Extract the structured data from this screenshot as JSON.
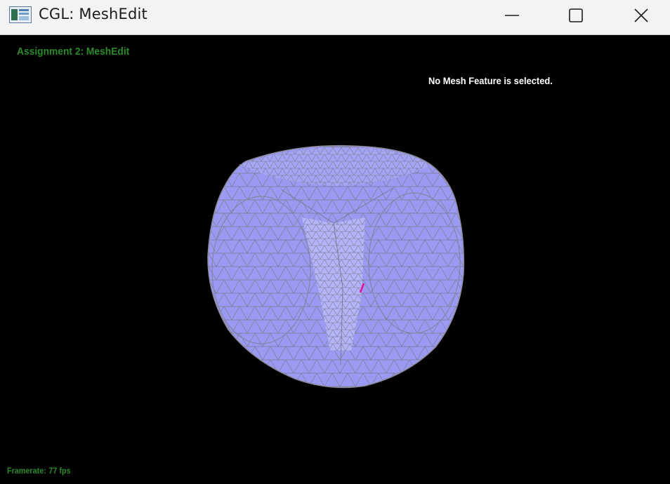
{
  "window": {
    "title": "CGL: MeshEdit",
    "controls": [
      "minimize-icon",
      "maximize-icon",
      "close-icon"
    ]
  },
  "overlay": {
    "heading": "Assignment 2: MeshEdit",
    "selection_status": "No Mesh Feature is selected.",
    "framerate_label": "Framerate:",
    "framerate_value": "77 fps"
  },
  "colors": {
    "background": "#000000",
    "titlebar": "#f3f3f3",
    "heading_text": "#2a8a2a",
    "mesh_fill": "#9a9af2",
    "mesh_wire": "#8a8a9a",
    "highlight_edge": "#e0149a"
  }
}
